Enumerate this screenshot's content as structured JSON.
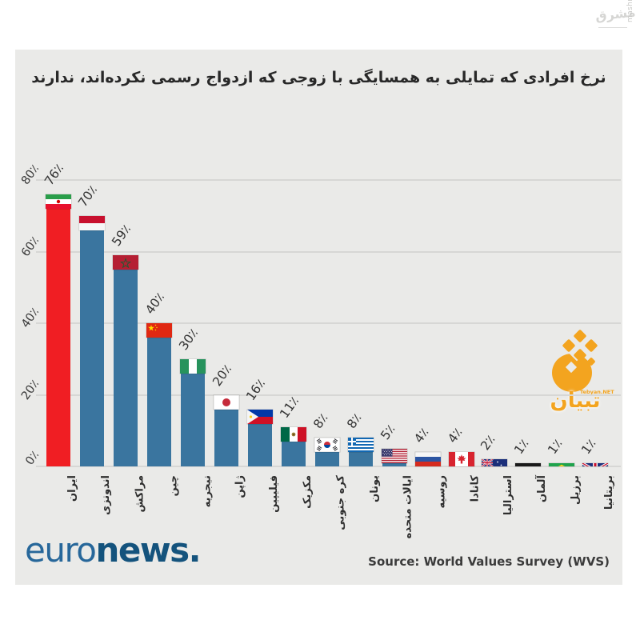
{
  "title": "نرخ افرادی که تمایلی به همسایگی با زوجی که ازدواج رسمی نکرده‌اند، ندارند",
  "watermark": {
    "site_vertical": "mashreghnews.ir",
    "logo_text": "مشرق"
  },
  "tebyan_badge": {
    "name_fa": "تبیان",
    "name_en": "Tebyan.NET"
  },
  "footer": {
    "logo_part1": "euro",
    "logo_part2": "news.",
    "source": "Source: World Values Survey (WVS)"
  },
  "chart_data": {
    "type": "bar",
    "title": "نرخ افرادی که تمایلی به همسایگی با زوجی که ازدواج رسمی نکرده‌اند، ندارند",
    "categories": [
      "ایران",
      "اندونزی",
      "مراکش",
      "چین",
      "نیجریه",
      "ژاپن",
      "فیلیپین",
      "مکزیک",
      "کره جنوبی",
      "یونان",
      "ایالات متحده",
      "روسیه",
      "کانادا",
      "استرالیا",
      "آلمان",
      "برزیل",
      "بریتانیا"
    ],
    "country_codes": [
      "iran",
      "indonesia",
      "morocco",
      "china",
      "nigeria",
      "japan",
      "philippines",
      "mexico",
      "south-korea",
      "greece",
      "usa",
      "russia",
      "canada",
      "australia",
      "germany",
      "brazil",
      "uk"
    ],
    "values": [
      76,
      70,
      59,
      40,
      30,
      20,
      16,
      11,
      8,
      8,
      5,
      4,
      4,
      2,
      1,
      1,
      1
    ],
    "value_labels": [
      "76٪",
      "70٪",
      "59٪",
      "40٪",
      "30٪",
      "20٪",
      "16٪",
      "11٪",
      "8٪",
      "8٪",
      "5٪",
      "4٪",
      "4٪",
      "2٪",
      "1٪",
      "1٪",
      "1٪"
    ],
    "y_ticks": [
      {
        "value": 0,
        "label": "0٪"
      },
      {
        "value": 20,
        "label": "20٪"
      },
      {
        "value": 40,
        "label": "40٪"
      },
      {
        "value": 60,
        "label": "60٪"
      },
      {
        "value": 80,
        "label": "80٪"
      }
    ],
    "ylim": [
      0,
      85
    ],
    "grid": true,
    "legend": false,
    "bar_color": "#3a759f",
    "highlight_color": "#f01e23",
    "highlight_index": 0
  }
}
